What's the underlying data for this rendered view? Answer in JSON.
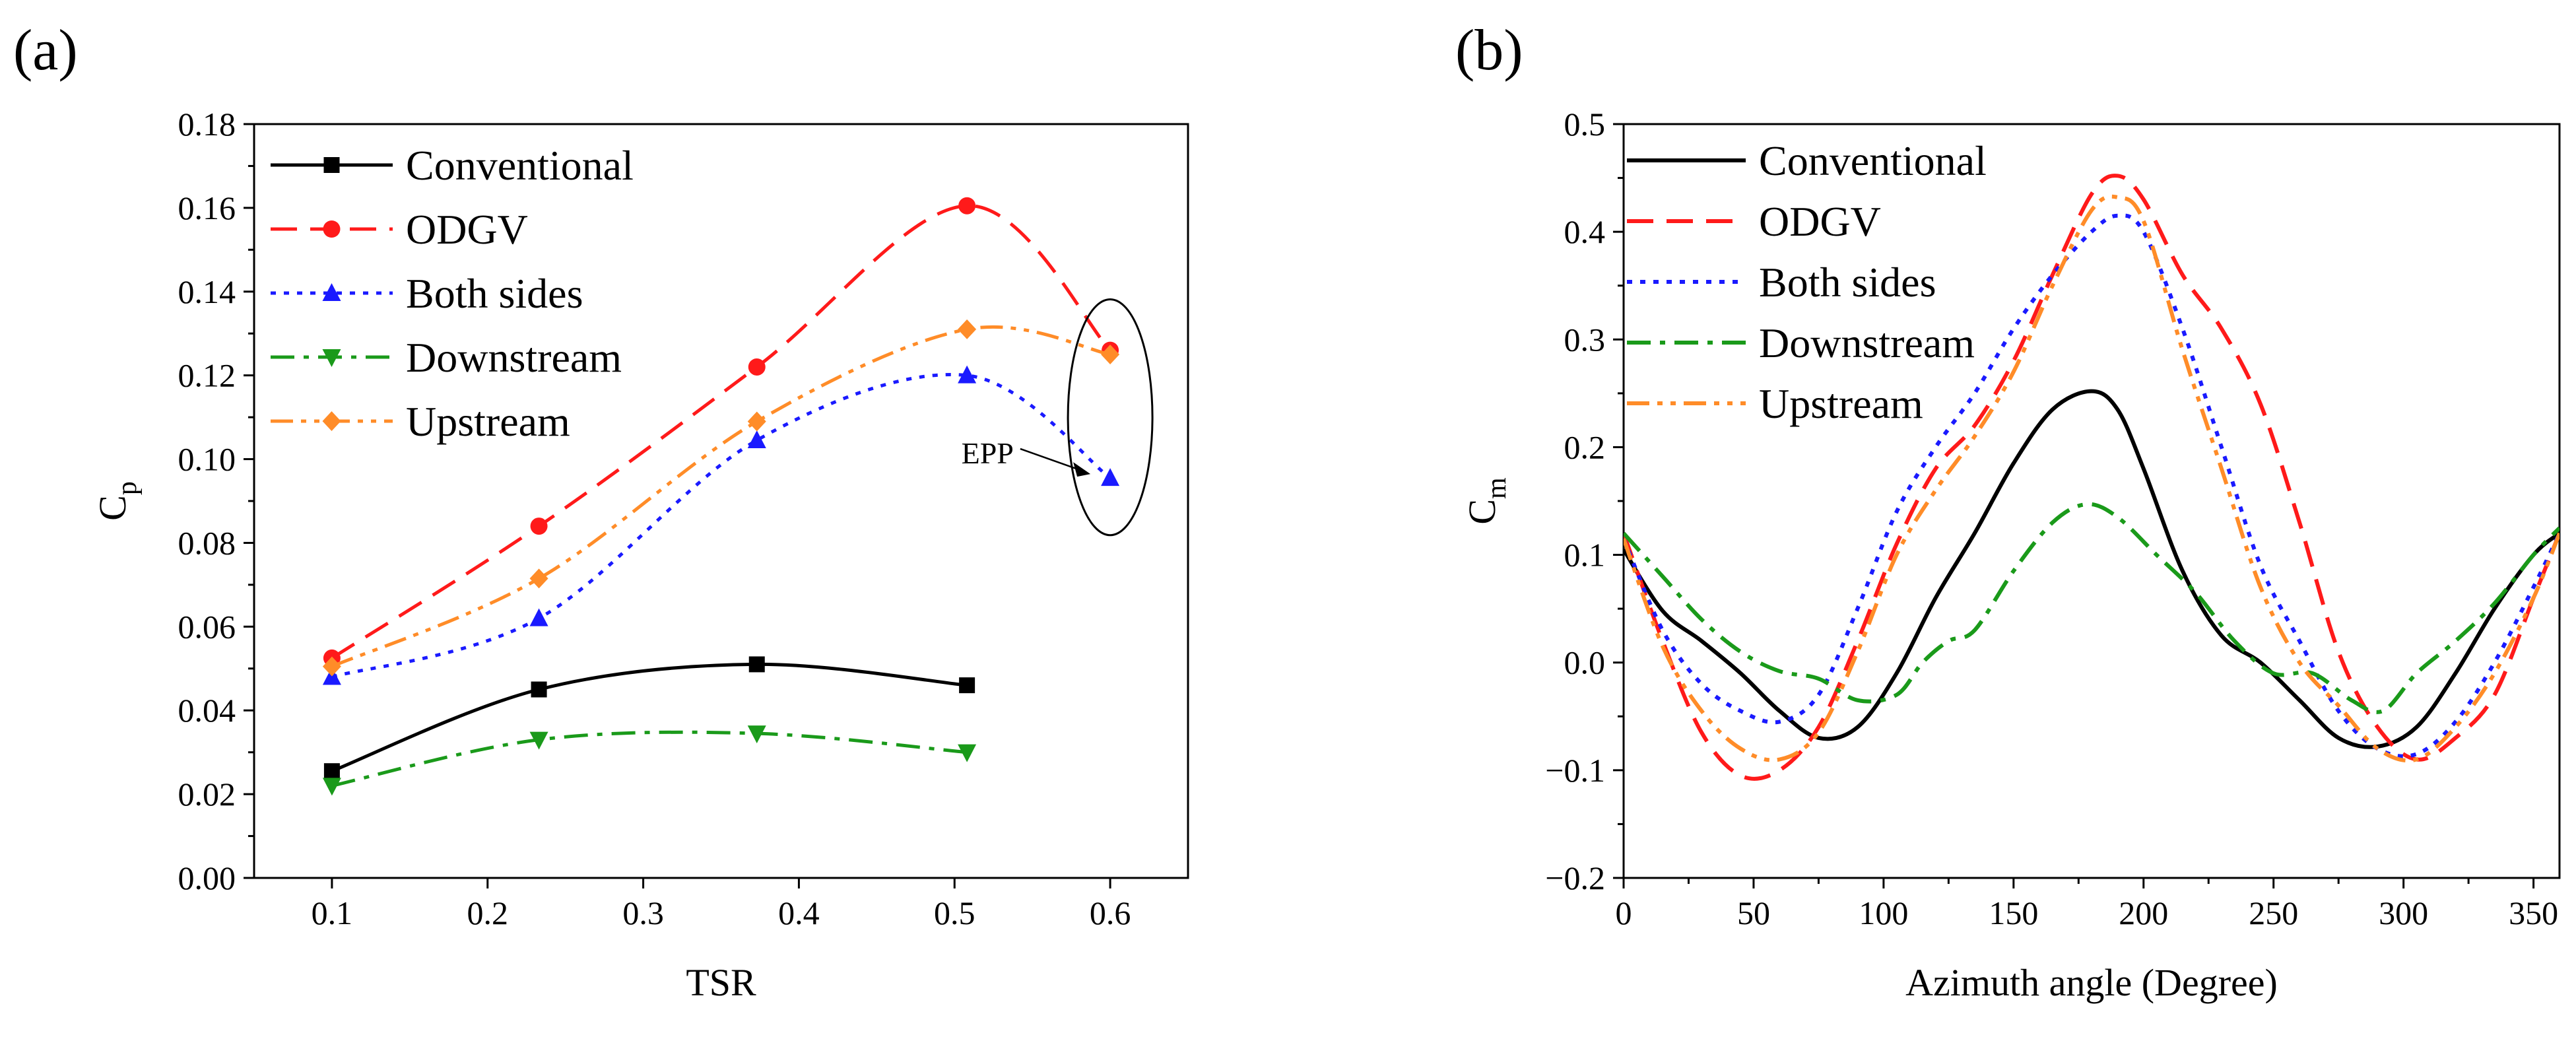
{
  "figure": {
    "panel_a_label": "(a)",
    "panel_b_label": "(b)"
  },
  "colors": {
    "conventional": "#000000",
    "odgv": "#ff1a1a",
    "both": "#1a1aff",
    "down": "#1a9a1a",
    "up": "#ff8c28"
  },
  "chart_data": [
    {
      "id": "a",
      "type": "line",
      "title": "(a)",
      "xlabel": "TSR",
      "ylabel": "Cp",
      "ylabel_main": "C",
      "ylabel_sub": "p",
      "xlim": [
        0.05,
        0.65
      ],
      "ylim": [
        0.0,
        0.18
      ],
      "xticks": [
        0.1,
        0.2,
        0.3,
        0.4,
        0.5,
        0.6
      ],
      "xtick_labels": [
        "0.1",
        "0.2",
        "0.3",
        "0.4",
        "0.5",
        "0.6"
      ],
      "yticks": [
        0.0,
        0.02,
        0.04,
        0.06,
        0.08,
        0.1,
        0.12,
        0.14,
        0.16,
        0.18
      ],
      "ytick_labels": [
        "0.00",
        "0.02",
        "0.04",
        "0.06",
        "0.08",
        "0.10",
        "0.12",
        "0.14",
        "0.16",
        "0.18"
      ],
      "legend_position": "top-left",
      "series": [
        {
          "key": "conventional",
          "name": "Conventional",
          "marker": "square",
          "dash": "solid",
          "x": [
            0.1,
            0.233,
            0.373,
            0.508
          ],
          "y": [
            0.0255,
            0.045,
            0.051,
            0.046
          ]
        },
        {
          "key": "odgv",
          "name": "ODGV",
          "marker": "circle",
          "dash": "dash",
          "x": [
            0.1,
            0.233,
            0.373,
            0.508,
            0.6
          ],
          "y": [
            0.0525,
            0.084,
            0.122,
            0.1605,
            0.126
          ]
        },
        {
          "key": "both",
          "name": "Both sides",
          "marker": "triangle-up",
          "dash": "dot",
          "x": [
            0.1,
            0.233,
            0.373,
            0.508,
            0.6
          ],
          "y": [
            0.048,
            0.062,
            0.1045,
            0.12,
            0.0955
          ]
        },
        {
          "key": "down",
          "name": "Downstream",
          "marker": "triangle-down",
          "dash": "dashdot",
          "x": [
            0.1,
            0.233,
            0.373,
            0.508
          ],
          "y": [
            0.022,
            0.033,
            0.0345,
            0.03
          ]
        },
        {
          "key": "up",
          "name": "Upstream",
          "marker": "diamond",
          "dash": "dashdotdot",
          "x": [
            0.1,
            0.233,
            0.373,
            0.508,
            0.6
          ],
          "y": [
            0.0505,
            0.0715,
            0.109,
            0.131,
            0.125
          ]
        }
      ],
      "annotations": [
        {
          "text": "EPP",
          "points_to": [
            0.6,
            0.0955
          ],
          "encircled_x": 0.6,
          "encircled_y_range": [
            0.085,
            0.135
          ]
        }
      ]
    },
    {
      "id": "b",
      "type": "line",
      "title": "(b)",
      "xlabel": "Azimuth angle (Degree)",
      "ylabel": "Cm",
      "ylabel_main": "C",
      "ylabel_sub": "m",
      "xlim": [
        0,
        360
      ],
      "ylim": [
        -0.2,
        0.5
      ],
      "xticks": [
        0,
        50,
        100,
        150,
        200,
        250,
        300,
        350
      ],
      "xtick_labels": [
        "0",
        "50",
        "100",
        "150",
        "200",
        "250",
        "300",
        "350"
      ],
      "yticks": [
        -0.2,
        -0.1,
        0.0,
        0.1,
        0.2,
        0.3,
        0.4,
        0.5
      ],
      "ytick_labels": [
        "−0.2",
        "−0.1",
        "0.0",
        "0.1",
        "0.2",
        "0.3",
        "0.4",
        "0.5"
      ],
      "legend_position": "top-left",
      "series": [
        {
          "key": "conventional",
          "name": "Conventional",
          "dash": "solid",
          "x": [
            0,
            15,
            30,
            45,
            60,
            75,
            90,
            105,
            120,
            135,
            150,
            165,
            180,
            190,
            200,
            215,
            230,
            245,
            260,
            275,
            290,
            305,
            320,
            335,
            350,
            360
          ],
          "y": [
            0.105,
            0.048,
            0.02,
            -0.01,
            -0.045,
            -0.07,
            -0.06,
            -0.01,
            0.06,
            0.12,
            0.185,
            0.235,
            0.252,
            0.235,
            0.18,
            0.085,
            0.025,
            0.0,
            -0.035,
            -0.07,
            -0.078,
            -0.06,
            -0.01,
            0.05,
            0.1,
            0.12
          ]
        },
        {
          "key": "odgv",
          "name": "ODGV",
          "dash": "dash",
          "x": [
            0,
            15,
            30,
            45,
            60,
            75,
            90,
            105,
            120,
            135,
            150,
            165,
            180,
            190,
            200,
            215,
            230,
            245,
            260,
            275,
            290,
            305,
            320,
            335,
            350,
            360
          ],
          "y": [
            0.12,
            0.02,
            -0.065,
            -0.105,
            -0.1,
            -0.06,
            0.02,
            0.11,
            0.18,
            0.22,
            0.28,
            0.36,
            0.435,
            0.452,
            0.43,
            0.36,
            0.31,
            0.24,
            0.13,
            0.01,
            -0.06,
            -0.09,
            -0.07,
            -0.03,
            0.06,
            0.12
          ]
        },
        {
          "key": "both",
          "name": "Both sides",
          "dash": "dot",
          "x": [
            0,
            15,
            30,
            45,
            60,
            75,
            90,
            105,
            120,
            135,
            150,
            165,
            180,
            190,
            200,
            215,
            230,
            245,
            260,
            275,
            290,
            305,
            320,
            335,
            350,
            360
          ],
          "y": [
            0.115,
            0.03,
            -0.02,
            -0.045,
            -0.055,
            -0.03,
            0.05,
            0.14,
            0.2,
            0.25,
            0.31,
            0.36,
            0.4,
            0.415,
            0.4,
            0.31,
            0.2,
            0.09,
            0.02,
            -0.045,
            -0.08,
            -0.085,
            -0.055,
            0.0,
            0.07,
            0.12
          ]
        },
        {
          "key": "down",
          "name": "Downstream",
          "dash": "dashdot",
          "x": [
            0,
            15,
            30,
            45,
            60,
            75,
            90,
            105,
            115,
            125,
            135,
            150,
            165,
            178,
            190,
            205,
            220,
            235,
            250,
            265,
            280,
            292,
            305,
            320,
            335,
            350,
            360
          ],
          "y": [
            0.12,
            0.08,
            0.04,
            0.01,
            -0.008,
            -0.015,
            -0.035,
            -0.03,
            0.0,
            0.02,
            0.03,
            0.085,
            0.13,
            0.147,
            0.135,
            0.1,
            0.065,
            0.02,
            -0.01,
            -0.01,
            -0.035,
            -0.045,
            -0.01,
            0.02,
            0.055,
            0.1,
            0.125
          ]
        },
        {
          "key": "up",
          "name": "Upstream",
          "dash": "dashdotdot",
          "x": [
            0,
            15,
            30,
            45,
            60,
            75,
            90,
            105,
            120,
            135,
            150,
            165,
            180,
            190,
            200,
            215,
            230,
            245,
            260,
            275,
            290,
            305,
            320,
            335,
            350,
            360
          ],
          "y": [
            0.115,
            0.015,
            -0.045,
            -0.08,
            -0.09,
            -0.065,
            0.01,
            0.1,
            0.16,
            0.21,
            0.27,
            0.35,
            0.42,
            0.432,
            0.41,
            0.29,
            0.18,
            0.07,
            0.0,
            -0.04,
            -0.08,
            -0.09,
            -0.06,
            -0.01,
            0.06,
            0.12
          ]
        }
      ]
    }
  ]
}
